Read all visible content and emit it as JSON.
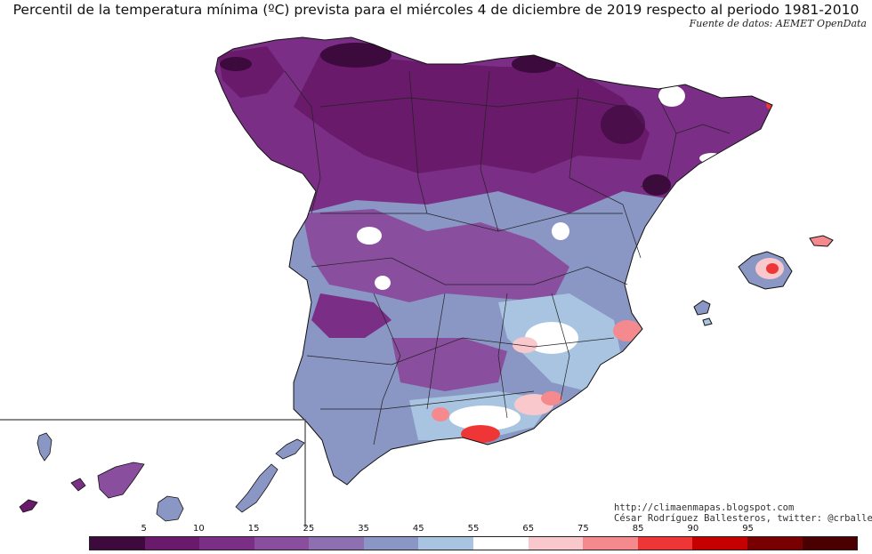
{
  "title": "Percentil de la temperatura mínima (ºC) prevista para el miércoles 4 de diciembre de 2019 respecto al periodo 1981-2010",
  "source": "Fuente de datos: AEMET OpenData",
  "credits": {
    "url": "http://climaenmapas.blogspot.com",
    "author": "César Rodríguez Ballesteros, twitter: @crballesteros"
  },
  "legend": {
    "labels": [
      "5",
      "10",
      "15",
      "25",
      "35",
      "45",
      "55",
      "65",
      "75",
      "85",
      "90",
      "95"
    ],
    "colors": [
      "#3d0a3d",
      "#6a1a6a",
      "#7a2e85",
      "#8a4e9e",
      "#8e6fb0",
      "#8a96c4",
      "#a8c4e0",
      "#ffffff",
      "#f8c8cc",
      "#f48a8e",
      "#ee3636",
      "#c40000",
      "#780000",
      "#4a0000"
    ]
  },
  "map": {
    "regions": [
      "Península Ibérica",
      "Islas Baleares",
      "Islas Canarias"
    ]
  }
}
